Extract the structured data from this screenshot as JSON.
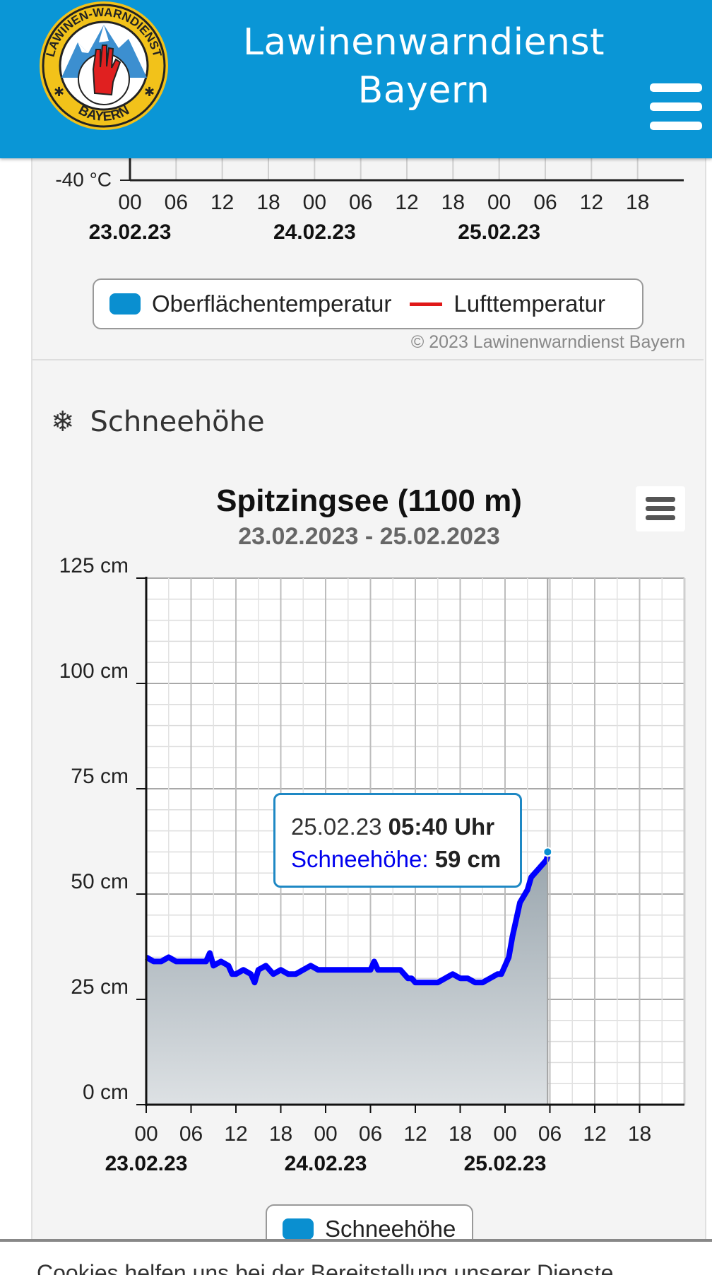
{
  "header": {
    "title_line1": "Lawinenwarndienst",
    "title_line2": "Bayern",
    "logo_top_text": "LAWINEN-WARNDIENST",
    "logo_bottom_text": "BAYERN",
    "background_color": "#0a96d6"
  },
  "temperature_chart_partial": {
    "y_tick_label": "-40 °C",
    "x_hours": [
      "00",
      "06",
      "12",
      "18",
      "00",
      "06",
      "12",
      "18",
      "00",
      "06",
      "12",
      "18"
    ],
    "x_dates": [
      "23.02.23",
      "24.02.23",
      "25.02.23"
    ],
    "legend": {
      "surface_label": "Oberflächentemperatur",
      "surface_color": "#0a8fd0",
      "air_label": "Lufttemperatur",
      "air_color": "#e01818"
    },
    "copyright": "© 2023 Lawinenwarndienst Bayern"
  },
  "snow_section": {
    "heading": "Schneehöhe",
    "icon": "snowflake-icon"
  },
  "chart_data": {
    "type": "area",
    "title": "Spitzingsee (1100 m)",
    "subtitle": "23.02.2023 - 25.02.2023",
    "y_ticks": [
      "125 cm",
      "100 cm",
      "75 cm",
      "50 cm",
      "25 cm",
      "0 cm"
    ],
    "ylim": [
      0,
      125
    ],
    "xlim_hours": [
      0,
      72
    ],
    "x_hours": [
      "00",
      "06",
      "12",
      "18",
      "00",
      "06",
      "12",
      "18",
      "00",
      "06",
      "12",
      "18"
    ],
    "x_dates": [
      "23.02.23",
      "24.02.23",
      "25.02.23"
    ],
    "grid": true,
    "line_color": "#0000ff",
    "fill_color": "#9aa6ae",
    "series": [
      {
        "name": "Schneehöhe",
        "x": [
          0,
          1,
          2,
          3,
          4,
          5,
          6,
          7,
          8,
          8.5,
          9,
          10,
          11,
          11.5,
          12,
          13,
          14,
          14.5,
          15,
          16,
          17,
          18,
          19,
          20,
          21,
          22,
          23,
          24,
          26,
          28,
          30,
          30.5,
          31,
          32,
          33,
          34,
          35,
          35.5,
          36,
          37,
          38,
          39,
          40,
          41,
          42,
          43,
          44,
          45,
          46,
          47,
          47.5,
          48,
          48.5,
          49,
          49.5,
          50,
          51,
          51.5,
          52,
          52.5,
          53,
          53.5,
          53.7
        ],
        "y": [
          35,
          34,
          34,
          35,
          34,
          34,
          34,
          34,
          34,
          36,
          33,
          34,
          33,
          31,
          31,
          32,
          31,
          29,
          32,
          33,
          31,
          32,
          31,
          31,
          32,
          33,
          32,
          32,
          32,
          32,
          32,
          34,
          32,
          32,
          32,
          32,
          30,
          30,
          29,
          29,
          29,
          29,
          30,
          31,
          30,
          30,
          29,
          29,
          30,
          31,
          31,
          33,
          35,
          40,
          44,
          48,
          51,
          54,
          55,
          56,
          57,
          58,
          59
        ]
      }
    ],
    "legend": [
      "Schneehöhe"
    ],
    "legend_color": "#0a8fd0",
    "tooltip": {
      "date": "25.02.23",
      "time": "05:40 Uhr",
      "label": "Schneehöhe:",
      "value": "59 cm"
    }
  },
  "cookie_banner": {
    "text": "Cookies helfen uns bei der Bereitstellung unserer Dienste"
  }
}
